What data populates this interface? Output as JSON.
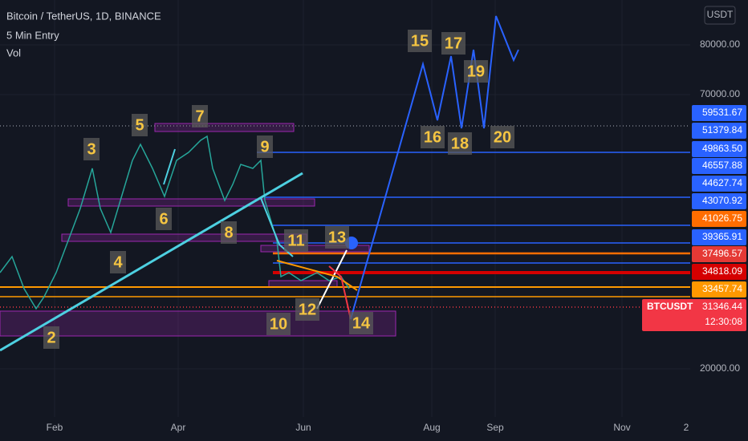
{
  "header": {
    "symbol": "Bitcoin / TetherUS, 1D, BINANCE",
    "indicators": [
      "5 Min Entry",
      "Vol"
    ]
  },
  "currency": "USDT",
  "axis_ticks": [
    "80000.00",
    "70000.00",
    "20000.00"
  ],
  "price_labels": [
    {
      "text": "59531.67",
      "color": "#2962ff"
    },
    {
      "text": "51379.84",
      "color": "#2962ff"
    },
    {
      "text": "49863.50",
      "color": "#2962ff"
    },
    {
      "text": "46557.88",
      "color": "#2962ff"
    },
    {
      "text": "44627.74",
      "color": "#2962ff"
    },
    {
      "text": "43070.92",
      "color": "#2962ff"
    },
    {
      "text": "41026.75",
      "color": "#ff6d00"
    },
    {
      "text": "39365.91",
      "color": "#2962ff"
    },
    {
      "text": "37496.57",
      "color": "#e53935"
    },
    {
      "text": "34818.09",
      "color": "#d50000"
    },
    {
      "text": "33457.74",
      "color": "#ff9800"
    }
  ],
  "current_price": {
    "symbol": "BTCUSDT",
    "price": "31346.44",
    "countdown": "12:30:08",
    "color": "#f23645"
  },
  "time_axis": [
    "Feb",
    "Apr",
    "Jun",
    "Aug",
    "Sep",
    "Nov",
    "2"
  ],
  "wave_labels": [
    "2",
    "3",
    "4",
    "5",
    "6",
    "7",
    "8",
    "9",
    "10",
    "11",
    "12",
    "13",
    "14",
    "15",
    "16",
    "17",
    "18",
    "19",
    "20"
  ]
}
